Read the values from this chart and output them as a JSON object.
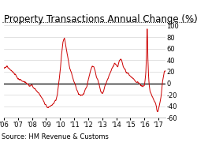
{
  "title": "Property Transactions Annual Change (%)",
  "source": "Source: HM Revenue & Customs",
  "line_color": "#cc0000",
  "zero_line_color": "#000000",
  "background_color": "#ffffff",
  "grid_color": "#cccccc",
  "ylim": [
    -60,
    100
  ],
  "yticks": [
    -60,
    -40,
    -20,
    0,
    20,
    40,
    60,
    80,
    100
  ],
  "xtick_labels": [
    "'06",
    "'07",
    "'08",
    "'09",
    "'10",
    "'11",
    "'12",
    "'13",
    "'14",
    "'15",
    "'16",
    "'17"
  ],
  "title_fontsize": 8.5,
  "source_fontsize": 6,
  "tick_fontsize": 6,
  "xlim": [
    0,
    11.5
  ]
}
